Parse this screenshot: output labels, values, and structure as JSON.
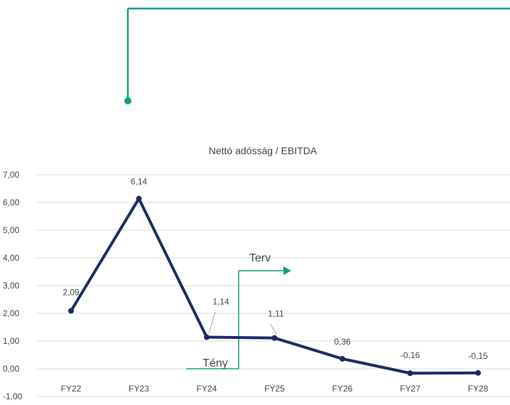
{
  "chart_data": {
    "type": "line",
    "title": "Nettó adósság / EBITDA",
    "categories": [
      "FY22",
      "FY23",
      "FY24",
      "FY25",
      "FY26",
      "FY27",
      "FY28"
    ],
    "series": [
      {
        "values": [
          2.09,
          6.14,
          1.14,
          1.11,
          0.36,
          -0.16,
          -0.15
        ]
      }
    ],
    "data_labels": [
      "2,09",
      "6,14",
      "1,14",
      "1,11",
      "0,36",
      "-0,16",
      "-0,15"
    ],
    "ylim": [
      -1,
      7
    ],
    "yticks": [
      -1,
      0,
      1,
      2,
      3,
      4,
      5,
      6,
      7
    ],
    "ytick_labels": [
      "-1,00",
      "0,00",
      "1,00",
      "2,00",
      "3,00",
      "4,00",
      "5,00",
      "6,00",
      "7,00"
    ],
    "xlabel": "",
    "ylabel": "",
    "grid": true,
    "annotations": {
      "actual_label": "Tény",
      "plan_label": "Terv"
    },
    "colors": {
      "series": "#1b2a64",
      "accent": "#139a86",
      "grid": "#d9d9d9",
      "text": "#404040"
    }
  }
}
